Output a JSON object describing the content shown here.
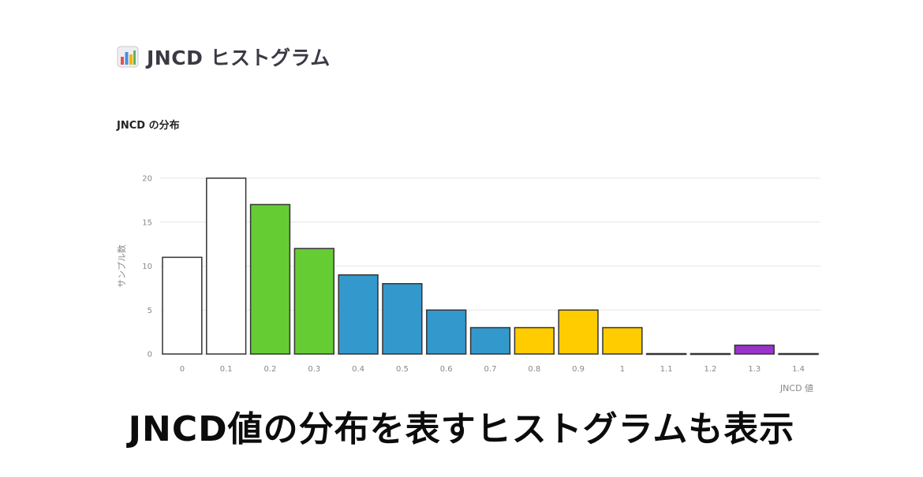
{
  "header": {
    "icon": "bar-chart-icon",
    "title": "JNCD ヒストグラム"
  },
  "caption": "JNCD値の分布を表すヒストグラムも表示",
  "colors": {
    "white": "#ffffff",
    "green": "#66cc33",
    "blue": "#3399cc",
    "yellow": "#ffcc00",
    "purple": "#9933cc",
    "outline": "#333333",
    "grid": "#e6e6e6"
  },
  "chart_data": {
    "type": "bar",
    "title": "JNCD の分布",
    "xlabel": "JNCD 値",
    "ylabel": "サンプル数",
    "categories": [
      "0",
      "0.1",
      "0.2",
      "0.3",
      "0.4",
      "0.5",
      "0.6",
      "0.7",
      "0.8",
      "0.9",
      "1",
      "1.1",
      "1.2",
      "1.3",
      "1.4"
    ],
    "values": [
      11,
      20,
      17,
      12,
      9,
      8,
      5,
      3,
      3,
      5,
      3,
      0,
      0,
      1,
      0
    ],
    "bar_colors": [
      "#ffffff",
      "#ffffff",
      "#66cc33",
      "#66cc33",
      "#3399cc",
      "#3399cc",
      "#3399cc",
      "#3399cc",
      "#ffcc00",
      "#ffcc00",
      "#ffcc00",
      "#ffffff",
      "#ffffff",
      "#9933cc",
      "#ffffff"
    ],
    "ylim": [
      0,
      20
    ],
    "yticks": [
      0,
      5,
      10,
      15,
      20
    ],
    "grid": true
  }
}
